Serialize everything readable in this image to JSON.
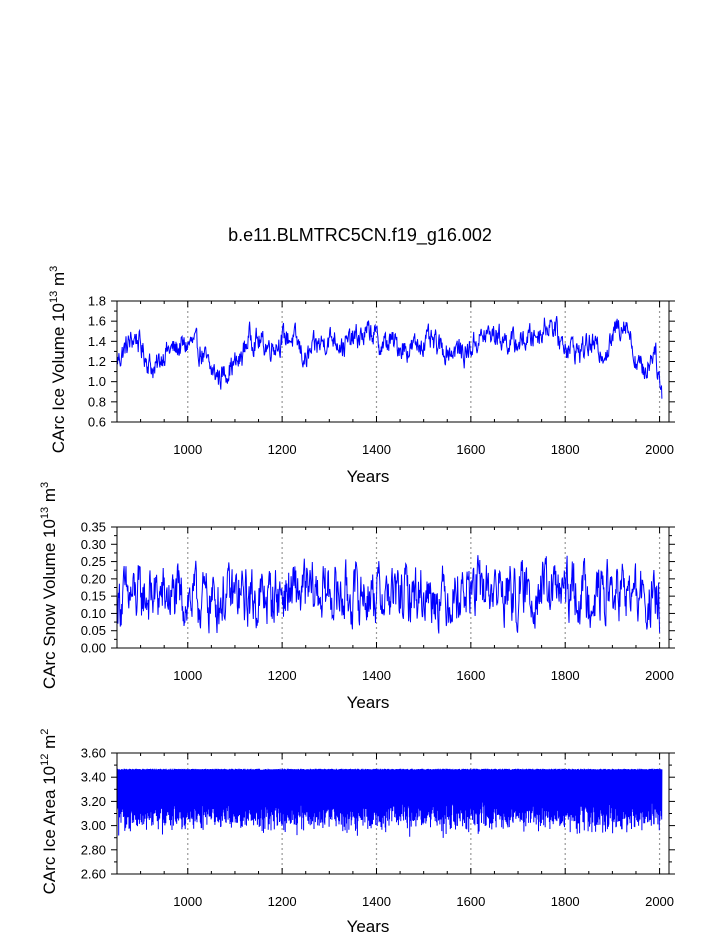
{
  "figure": {
    "title": "b.e11.BLMTRC5CN.f19_g16.002"
  },
  "style": {
    "series_color": "#0000ff",
    "grid_color": "#999999",
    "axis_color": "#000000"
  },
  "chart_data": [
    {
      "type": "line",
      "title": "b.e11.BLMTRC5CN.f19_g16.002",
      "xlabel": "Years",
      "ylabel": {
        "base": "CArc Ice Volume 10",
        "exp": "13",
        "unit": " m",
        "unit_exp": "3"
      },
      "xlim": [
        850,
        2020
      ],
      "ylim": [
        0.6,
        1.8
      ],
      "xticks": [
        1000,
        1200,
        1400,
        1600,
        1800,
        2000
      ],
      "xtick_labels": [
        "1000",
        "1200",
        "1400",
        "1600",
        "1800",
        "2000"
      ],
      "yticks": [
        0.6,
        0.8,
        1.0,
        1.2,
        1.4,
        1.6,
        1.8
      ],
      "ytick_labels": [
        "0.6",
        "0.8",
        "1.0",
        "1.2",
        "1.4",
        "1.6",
        "1.8"
      ],
      "grid_x": [
        1000,
        1200,
        1400,
        1600,
        1800,
        2000
      ],
      "series": [
        {
          "name": "CArc Ice Volume",
          "x": [
            850,
            870,
            890,
            910,
            930,
            950,
            970,
            990,
            1010,
            1030,
            1050,
            1070,
            1090,
            1110,
            1130,
            1150,
            1170,
            1190,
            1210,
            1230,
            1250,
            1270,
            1290,
            1310,
            1330,
            1350,
            1370,
            1390,
            1410,
            1430,
            1450,
            1470,
            1490,
            1510,
            1530,
            1550,
            1570,
            1590,
            1610,
            1630,
            1650,
            1670,
            1690,
            1710,
            1730,
            1750,
            1770,
            1790,
            1810,
            1830,
            1850,
            1870,
            1890,
            1910,
            1930,
            1950,
            1970,
            1990,
            2005
          ],
          "y": [
            1.2,
            1.35,
            1.45,
            1.25,
            1.1,
            1.3,
            1.32,
            1.35,
            1.38,
            1.28,
            1.1,
            1.05,
            1.15,
            1.2,
            1.45,
            1.4,
            1.35,
            1.38,
            1.45,
            1.4,
            1.2,
            1.35,
            1.4,
            1.45,
            1.35,
            1.42,
            1.45,
            1.5,
            1.35,
            1.4,
            1.35,
            1.32,
            1.38,
            1.4,
            1.35,
            1.3,
            1.32,
            1.28,
            1.4,
            1.45,
            1.48,
            1.42,
            1.38,
            1.4,
            1.45,
            1.5,
            1.6,
            1.4,
            1.35,
            1.3,
            1.38,
            1.32,
            1.3,
            1.55,
            1.6,
            1.2,
            1.1,
            1.35,
            0.85
          ],
          "amplitude": 0.18
        }
      ]
    },
    {
      "type": "line",
      "xlabel": "Years",
      "ylabel": {
        "base": "CArc Snow Volume 10",
        "exp": "13",
        "unit": " m",
        "unit_exp": "3"
      },
      "xlim": [
        850,
        2020
      ],
      "ylim": [
        0.0,
        0.35
      ],
      "xticks": [
        1000,
        1200,
        1400,
        1600,
        1800,
        2000
      ],
      "xtick_labels": [
        "1000",
        "1200",
        "1400",
        "1600",
        "1800",
        "2000"
      ],
      "yticks": [
        0.0,
        0.05,
        0.1,
        0.15,
        0.2,
        0.25,
        0.3,
        0.35
      ],
      "ytick_labels": [
        "0.00",
        "0.05",
        "0.10",
        "0.15",
        "0.20",
        "0.25",
        "0.30",
        "0.35"
      ],
      "grid_x": [
        1000,
        1200,
        1400,
        1600,
        1800,
        2000
      ],
      "series": [
        {
          "name": "CArc Snow Volume",
          "x": [
            850,
            900,
            950,
            1000,
            1050,
            1100,
            1150,
            1200,
            1250,
            1300,
            1350,
            1400,
            1450,
            1500,
            1550,
            1600,
            1650,
            1700,
            1750,
            1800,
            1850,
            1900,
            1950,
            2000
          ],
          "y": [
            0.14,
            0.15,
            0.15,
            0.14,
            0.14,
            0.15,
            0.14,
            0.16,
            0.16,
            0.16,
            0.15,
            0.16,
            0.15,
            0.16,
            0.15,
            0.17,
            0.17,
            0.15,
            0.17,
            0.16,
            0.16,
            0.16,
            0.15,
            0.12
          ],
          "amplitude": 0.12
        }
      ]
    },
    {
      "type": "line",
      "xlabel": "Years",
      "ylabel": {
        "base": "CArc Ice Area 10",
        "exp": "12",
        "unit": " m",
        "unit_exp": "2"
      },
      "xlim": [
        850,
        2020
      ],
      "ylim": [
        2.6,
        3.6
      ],
      "xticks": [
        1000,
        1200,
        1400,
        1600,
        1800,
        2000
      ],
      "xtick_labels": [
        "1000",
        "1200",
        "1400",
        "1600",
        "1800",
        "2000"
      ],
      "yticks": [
        2.6,
        2.8,
        3.0,
        3.2,
        3.4,
        3.6
      ],
      "ytick_labels": [
        "2.60",
        "2.80",
        "3.00",
        "3.20",
        "3.40",
        "3.60"
      ],
      "grid_x": [
        1000,
        1200,
        1400,
        1600,
        1800,
        2000
      ],
      "series": [
        {
          "name": "CArc Ice Area",
          "x": [
            850,
            2005
          ],
          "y": [
            3.46,
            3.46
          ],
          "seasonal_max": 3.47,
          "seasonal_min_mean": 3.08,
          "seasonal_min_spread": 0.12
        }
      ]
    }
  ]
}
